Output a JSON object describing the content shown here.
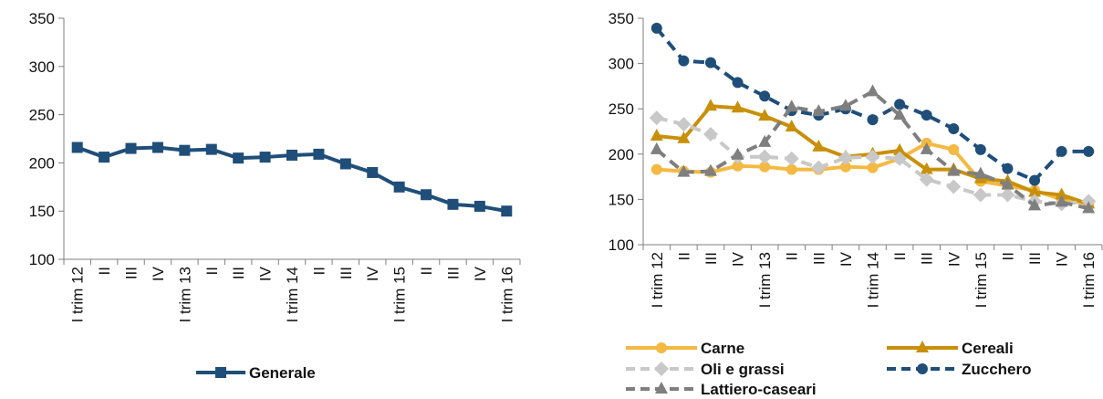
{
  "chart_data": [
    {
      "type": "line",
      "categories": [
        "I trim 12",
        "II",
        "III",
        "IV",
        "I trim 13",
        "II",
        "III",
        "IV",
        "I trim 14",
        "II",
        "III",
        "IV",
        "I trim 15",
        "II",
        "III",
        "IV",
        "I trim 16"
      ],
      "ylim": [
        100,
        350
      ],
      "yticks": [
        100,
        150,
        200,
        250,
        300,
        350
      ],
      "grid": false,
      "legend_position": "bottom",
      "series": [
        {
          "name": "Generale",
          "color": "#1f4e79",
          "marker": "square",
          "dash": "solid",
          "values": [
            216,
            206,
            215,
            216,
            213,
            214,
            205,
            206,
            208,
            209,
            199,
            190,
            175,
            167,
            157,
            155,
            150
          ]
        }
      ]
    },
    {
      "type": "line",
      "categories": [
        "I trim 12",
        "II",
        "III",
        "IV",
        "I trim 13",
        "II",
        "III",
        "IV",
        "I trim 14",
        "II",
        "III",
        "IV",
        "I trim 15",
        "II",
        "III",
        "IV",
        "I trim 16"
      ],
      "ylim": [
        100,
        350
      ],
      "yticks": [
        100,
        150,
        200,
        250,
        300,
        350
      ],
      "grid": false,
      "legend_position": "bottom",
      "series": [
        {
          "name": "Carne",
          "color": "#f4b942",
          "marker": "circle",
          "dash": "solid",
          "values": [
            183,
            181,
            180,
            187,
            186,
            183,
            183,
            186,
            185,
            195,
            212,
            205,
            170,
            165,
            160,
            150,
            145
          ]
        },
        {
          "name": "Cereali",
          "color": "#c8900a",
          "marker": "triangle",
          "dash": "solid",
          "values": [
            220,
            217,
            253,
            251,
            242,
            230,
            208,
            197,
            200,
            204,
            183,
            183,
            173,
            170,
            158,
            155,
            145
          ]
        },
        {
          "name": "Oli e grassi",
          "color": "#c8c8c8",
          "marker": "diamond",
          "dash": "dash",
          "values": [
            240,
            233,
            222,
            197,
            197,
            195,
            185,
            196,
            197,
            195,
            172,
            164,
            155,
            155,
            148,
            145,
            148
          ]
        },
        {
          "name": "Zucchero",
          "color": "#1f4e79",
          "marker": "circle",
          "dash": "dash",
          "values": [
            339,
            303,
            301,
            279,
            264,
            248,
            243,
            250,
            238,
            255,
            243,
            228,
            205,
            184,
            171,
            203,
            203
          ]
        },
        {
          "name": "Lattiero-caseari",
          "color": "#7f7f7f",
          "marker": "triangle",
          "dash": "dash",
          "values": [
            205,
            180,
            181,
            199,
            213,
            252,
            247,
            253,
            269,
            243,
            205,
            181,
            178,
            166,
            143,
            147,
            140
          ]
        }
      ]
    }
  ],
  "colors": {
    "axis": "#7f7f7f",
    "text": "#111111"
  }
}
